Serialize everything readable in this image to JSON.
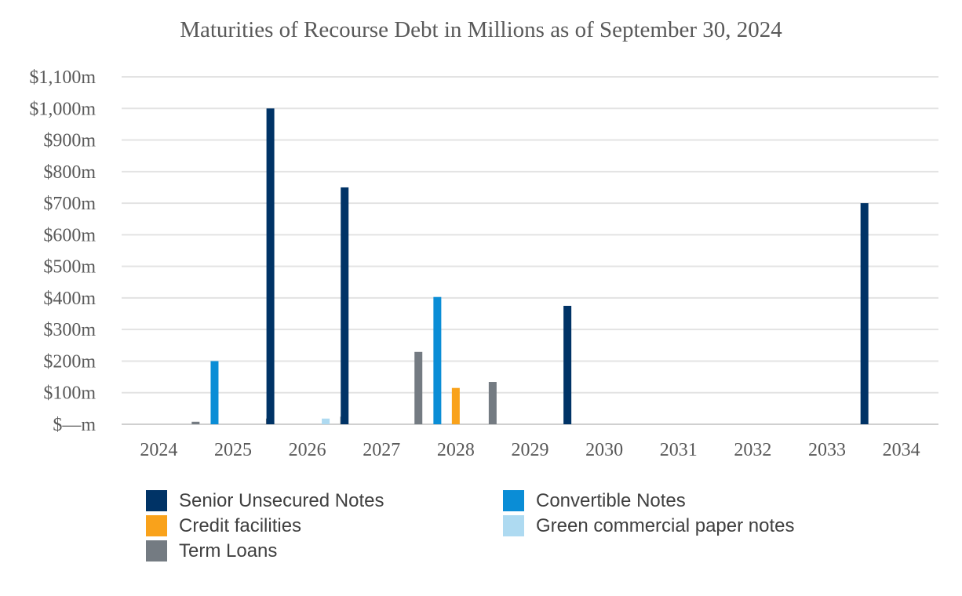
{
  "chart_data": {
    "type": "bar",
    "title": "Maturities of Recourse Debt in Millions as of September 30, 2024",
    "xlabel": "",
    "ylabel": "",
    "ylim": [
      0,
      1100
    ],
    "yticks": [
      0,
      100,
      200,
      300,
      400,
      500,
      600,
      700,
      800,
      900,
      1000,
      1100
    ],
    "ytick_labels": [
      "$—m",
      "$100m",
      "$200m",
      "$300m",
      "$400m",
      "$500m",
      "$600m",
      "$700m",
      "$800m",
      "$900m",
      "$1,000m",
      "$1,100m"
    ],
    "categories": [
      "2024",
      "2025",
      "2026",
      "2027",
      "2028",
      "2029",
      "2030",
      "2031",
      "2032",
      "2033",
      "2034"
    ],
    "grid": true,
    "legend_position": "bottom",
    "series": [
      {
        "name": "Senior Unsecured Notes",
        "color": "#003366",
        "values": [
          0,
          0,
          1000,
          750,
          0,
          0,
          375,
          0,
          0,
          0,
          700
        ]
      },
      {
        "name": "Convertible Notes",
        "color": "#0a8dd6",
        "values": [
          0,
          200,
          0,
          0,
          403,
          0,
          0,
          0,
          0,
          0,
          0
        ]
      },
      {
        "name": "Credit facilities",
        "color": "#f9a21b",
        "values": [
          0,
          0,
          0,
          0,
          115,
          0,
          0,
          0,
          0,
          0,
          0
        ]
      },
      {
        "name": "Green commercial paper notes",
        "color": "#aedaf1",
        "values": [
          0,
          0,
          18,
          0,
          0,
          0,
          0,
          0,
          0,
          0,
          0
        ]
      },
      {
        "name": "Term Loans",
        "color": "#747b82",
        "values": [
          8,
          18,
          24,
          229,
          134,
          0,
          0,
          0,
          0,
          0,
          0
        ]
      }
    ]
  }
}
